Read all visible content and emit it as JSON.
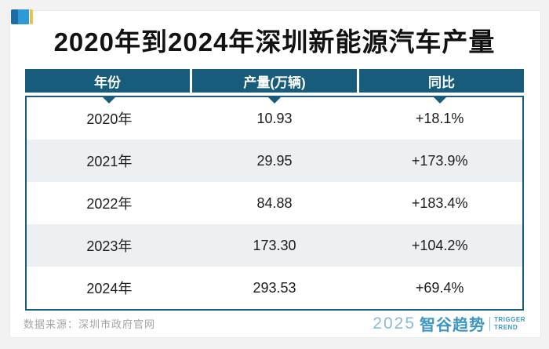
{
  "chart_data": {
    "type": "table",
    "title": "2020年到2024年深圳新能源汽车产量",
    "columns": [
      "年份",
      "产量(万辆)",
      "同比"
    ],
    "rows": [
      [
        "2020年",
        "10.93",
        "+18.1%"
      ],
      [
        "2021年",
        "29.95",
        "+173.9%"
      ],
      [
        "2022年",
        "84.88",
        "+183.4%"
      ],
      [
        "2023年",
        "173.30",
        "+104.2%"
      ],
      [
        "2024年",
        "293.53",
        "+69.4%"
      ]
    ],
    "unit": "万辆",
    "layout": "header-teal, alternating row shading, pointer triangles under each column header"
  },
  "footer": {
    "source": "数据来源：深圳市政府官网",
    "logo": {
      "year": "2025",
      "name": "智谷趋势",
      "tagline_top": "TRIGGER",
      "tagline_bottom": "TREND"
    }
  },
  "icons": {
    "corner": "brand-flag-icon (blue squares with gold stripe)",
    "pointer": "triangle-down-icon"
  },
  "colors": {
    "header_teal": "#175d7b",
    "row_alt": "#edf0f3",
    "title_black": "#121212",
    "source_gray": "#a3a3a3",
    "logo_blue": "#3d97c0",
    "logo_year_blue": "#85bcd8",
    "icon_blue_dark": "#1d6ca3",
    "icon_blue_light": "#2b9bd7",
    "icon_gold": "#e8c24d",
    "page_background": "#f2f2f3"
  }
}
